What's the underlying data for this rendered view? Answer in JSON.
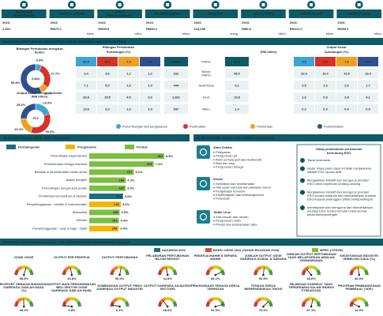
{
  "kpis": [
    {
      "label": "BILANGAN PERTUBUHAN",
      "year": "2023:",
      "value": "2,894"
    },
    {
      "label": "OUTPUT KASAR",
      "year": "2023:",
      "value": "RM79.2",
      "unit": "bilion"
    },
    {
      "label": "INPUT PERANTARAAN",
      "year": "2023:",
      "value": "RM39.8",
      "unit": "bilion"
    },
    {
      "label": "NILAI DITAMBAH",
      "year": "2023:",
      "value": "RM39.4",
      "unit": "bilion"
    },
    {
      "label": "PEKERJA",
      "year": "2023:",
      "value": "123,288",
      "unit": "orang"
    },
    {
      "label": "GAJI & UPAH",
      "year": "2023:",
      "value": "RM6.8",
      "unit": "bilion"
    },
    {
      "label": "HARTA TETAP",
      "year": "2023:",
      "value": "RM111.0",
      "unit": "bilion"
    },
    {
      "label": "OUTPUT OSGE",
      "year": "2023:",
      "value": "RM59.3",
      "unit": "bilion"
    }
  ],
  "sector": {
    "title": "BILANGAN PERTUBUHAN DAN OUTPUT KASAR MENGIKUT SEKTOR DAN PMKS",
    "legend": [
      {
        "name": "Perlombongan dan pengkuarian",
        "color": "#3da4d6"
      },
      {
        "name": "Pembuatan",
        "color": "#d63228"
      },
      {
        "name": "Pembinaan",
        "color": "#f0a020"
      },
      {
        "name": "Perkhidmatan",
        "color": "#2f4f8f"
      }
    ],
    "donut1": {
      "title": "Bilangan Pertubuhan mengikut Sektor",
      "center": "2,894",
      "slices": [
        {
          "value": 6.8,
          "label": "6.8%"
        },
        {
          "value": 27.7,
          "label": "27.7%"
        },
        {
          "value": 8.7,
          "label": "8.7%"
        },
        {
          "value": 56.8,
          "label": "56.8%"
        }
      ]
    },
    "donut2": {
      "title": "Output Kasar mengikut Sektor (RM bilion)",
      "center": "79.2",
      "slices": [
        {
          "value": 19.9,
          "label": "19.9%"
        },
        {
          "value": 35.5,
          "label": "35.5%"
        },
        {
          "value": 19.4,
          "label": "19.4%"
        },
        {
          "value": 25.2,
          "label": "25.2%"
        }
      ]
    },
    "count_table": {
      "title": "Bilangan Pertubuhan",
      "header": "Sumbangan (%)",
      "rows": [
        [
          "64.5",
          "24.1",
          "7.4",
          "5.6"
        ],
        [
          "2.4",
          "3.6",
          "1.2",
          "1.2"
        ],
        [
          "7.1",
          "5.6",
          "1.6",
          "1.0"
        ],
        [
          "33.8",
          "15.5",
          "4.5",
          "3.0"
        ],
        [
          "13.6",
          "3.0",
          "1.3",
          "1.0"
        ]
      ]
    },
    "size_table": {
      "header": "(RM bilion)",
      "rows": [
        {
          "count": "2,662",
          "size": "PMKS",
          "output": "21.2"
        },
        {
          "count": "232",
          "size": "Bukan PMKS",
          "output": "58.0"
        },
        {
          "count": "444",
          "size": "Sederhana",
          "output": "9.1"
        },
        {
          "count": "1,661",
          "size": "Kecil",
          "output": "10.8"
        },
        {
          "count": "547",
          "size": "Mikro",
          "output": "1.4"
        }
      ]
    },
    "output_table": {
      "title": "Output Kasar",
      "header": "Sumbangan (%)",
      "rows": [
        [
          "3.5",
          "2.5",
          "7.6",
          "13.2"
        ],
        [
          "32.0",
          "10.0",
          "11.9",
          "19.4"
        ],
        [
          "3.5",
          "1.3",
          "2.6",
          "1.7"
        ],
        [
          "1.6",
          "0.9",
          "2.8",
          "4.1"
        ],
        [
          "0.2",
          "0.3",
          "0.4",
          "0.5"
        ]
      ]
    }
  },
  "activities": {
    "title": "10 AKTIVITI TERAS OSGE YANG TERTINGGI",
    "legend": [
      {
        "name": "Pembangunan",
        "color": "#1c6e7d"
      },
      {
        "name": "Pengeluaran",
        "color": "#f5b400"
      },
      {
        "name": "Produk",
        "color": "#7cbf3f"
      }
    ],
    "items": [
      {
        "name": "Perundingan kejuruteraan",
        "count": 382,
        "share": "8.6%",
        "color": "#7cbf3f"
      },
      {
        "name": "Perkhidmatan tenaga manusia",
        "count": 328,
        "share": "7.4%",
        "color": "#7cbf3f"
      },
      {
        "name": "Bekalan & perkhidmatan bahan kimia",
        "count": 227,
        "share": "5.1%",
        "color": "#7cbf3f"
      },
      {
        "name": "Alatan bengkel",
        "count": 186,
        "share": "4.2%",
        "color": "#7cbf3f"
      },
      {
        "name": "Perundingan pengurusan projek",
        "count": 185,
        "share": "4.2%",
        "color": "#7cbf3f"
      },
      {
        "name": "Pembinaan kemudahan di daratan",
        "count": 172,
        "share": "3.9%",
        "color": "#1c6e7d"
      },
      {
        "name": "Penyelenggaraan - elektrik & instrumentasi",
        "count": 161,
        "share": "3.6%",
        "color": "#f5b400"
      },
      {
        "name": "Mekanikal",
        "count": 155,
        "share": "3.5%",
        "color": "#7cbf3f"
      },
      {
        "name": "Elektrik",
        "count": 151,
        "share": "3.4%",
        "color": "#7cbf3f"
      },
      {
        "name": "Penyelenggaraan - paip & injap - statik",
        "count": 150,
        "share": "3.4%",
        "color": "#f5b400"
      }
    ]
  },
  "esg": {
    "title": "ALAM SEKITAR, SOSIAL DAN TADBIR URUS (ESG)",
    "groups": [
      {
        "title": "Alam Sekitar",
        "items": [
          "Pelepasan",
          "Pengurusan air",
          "Alam semula jadi dan biodiversiti",
          "Bisa dan sisa",
          "Pengurusan tenaga"
        ]
      },
      {
        "title": "Sosial",
        "items": [
          "Kesihatan dan keselamatan",
          "Hak asasi manusia dan piawaian buruh",
          "Penglibatan komuniti",
          "Kepelbagaian dan keterangkuman",
          "Pekerjaan"
        ]
      },
      {
        "title": "Tadbir Urus",
        "items": [
          "Anti-rasuah dan rasuah",
          "Pengurusan risiko",
          "Privasi dan keselamatan data"
        ]
      }
    ],
    "understanding": {
      "title": "Tahap pemahaman pertubuhan berhubung ESG",
      "levels": [
        {
          "no": "1",
          "text": "Tiada kesedaran"
        },
        {
          "no": "2",
          "text": "Sedar tetapi pada masa ini tidak menjalankan inisiatif ESG secara aktif"
        },
        {
          "no": "3",
          "text": "Menjalankan inisiatif dan mengurus prestasi ESG untuk keperluan undang-undang"
        },
        {
          "no": "4",
          "text": "Menjalankan inisiatif dan mengurus prestasi ESG secara sukarela dan mendedahkan prestasi ESG kepada pelanggan/ pihak berkepentingan"
        },
        {
          "no": "5",
          "text": "Menetapkan dan mengurus dan mendedahkan prestasi ESG secara terbuka untuk semua pihak berkepentingan"
        }
      ]
    }
  },
  "targets": {
    "title": "PRESTASI SASARAN PELAN HALA TUJU INDUSTRI OSGE KEBANGSAAN 2021-2030",
    "legend": [
      {
        "name": "SASARAN 2030",
        "color": "#1c6e7d"
      },
      {
        "name": "BANCI OSGE 2024 (TAHUN RUJUKAN 2023)",
        "color": "#e64a2e"
      },
      {
        "name": "MPRC (+OSGE)",
        "color": "#7cbf3f"
      }
    ],
    "gauge_range": [
      0,
      100
    ],
    "gauges": [
      {
        "label": "KDNK OSGE",
        "value": 58.5,
        "value_label": "58.5%"
      },
      {
        "label": "OUTPUT PER PEKERJA",
        "value": 43.8,
        "value_label": "43.8%"
      },
      {
        "label": "OUTPUT PERTUBUHAN",
        "value": 56.0,
        "value_label": "56.0%"
      },
      {
        "label": "PELABURAN PERTUBUHAN BILION RINGGIT",
        "value": 44.8,
        "value_label": "44.8%"
      },
      {
        "label": "PEKERJA MAHIR & SEPARA MAHIR",
        "value": 86.1,
        "value_label": "86.1%"
      },
      {
        "label": "JUMLAH OUTPUT OSGE DARIPADA SOSIAL & SARANA",
        "value": 53.5,
        "value_label": "53.5%"
      },
      {
        "label": "JUMLAH OUTPUT PERTUBUHAN YANG MELAPORKAN AMALAN KEMAMPANAN",
        "value": 28.6,
        "value_label": "28.6%"
      },
      {
        "label": "KEUNTUNGAN INDUSTRI SEBELUM CUKAI (%)",
        "value": 46.0,
        "value_label": "46.0%"
      },
      {
        "label": "EKSPORT SEBAGAI BAHAGIAN DARIPADA JUMLAH HASIL (%)",
        "value": 48.2,
        "value_label": "48.2%"
      },
      {
        "label": "OUTPUT BAGI PERKHIDMATAN BELI SEKTOR OSGE DARIPADA JUMLAH HASIL",
        "value": 3.8,
        "value_label": "3.8%"
      },
      {
        "label": "SUMBANGAN OUTPUT PMKS DARIPADA OUTPUT INDUSTRI",
        "value": 6.1,
        "value_label": "6.1%"
      },
      {
        "label": "OUTPUT DARIPADA ADJACENT SECTORS",
        "value": 28.6,
        "value_label": "28.6%"
      },
      {
        "label": "PENGGUNAAN TENAGA KERJA TEMPATAN",
        "value": 91.6,
        "value_label": "91.6%"
      },
      {
        "label": "TENAGA KERJA BERPENDIDIKAN TINGGI",
        "value": 75.1,
        "value_label": "75.1%"
      },
      {
        "label": "BILANGAN SYARIKAT YANG TERSENARAI DALAM INDEKS FTSE4GOOD",
        "value": 57.1,
        "value_label": "57.1%"
      },
      {
        "label": "PROGRAM PEMBANGUNAN PEMBEKAL (VDP)",
        "value": 14.0,
        "value_label": "14.0%"
      }
    ]
  }
}
